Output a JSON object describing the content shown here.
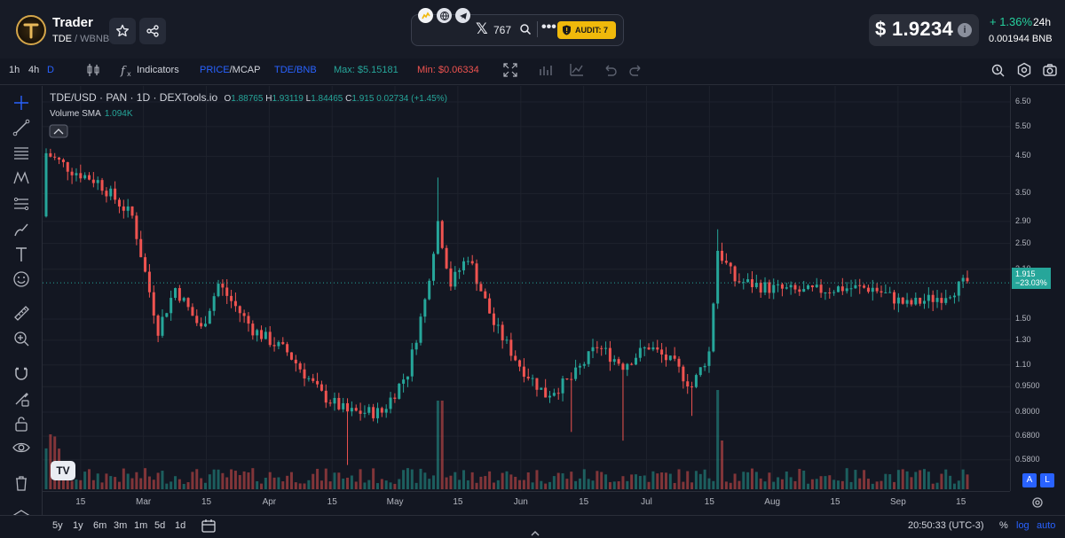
{
  "header": {
    "app_title": "Trader",
    "pair_base": "TDE",
    "pair_sep": " / ",
    "pair_quote": "WBNB",
    "x_followers": "767",
    "audit_label": "AUDIT: 7",
    "price": "$ 1.9234",
    "change": "+ 1.36%",
    "period": "24h",
    "bnb_price": "0.001944  BNB"
  },
  "toolbar": {
    "tf_1h": "1h",
    "tf_4h": "4h",
    "tf_d": "D",
    "indicators": "Indicators",
    "price_label": "PRICE",
    "mcap_label": "/MCAP",
    "tde_bnb": "TDE/BNB",
    "max": "Max: $5.15181",
    "min": "Min: $0.06334"
  },
  "legend": {
    "symbol": "TDE/USD · PAN · 1D · DEXTools.io",
    "o_lbl": "O",
    "o": "1.88765",
    "h_lbl": "H",
    "h": "1.93119",
    "l_lbl": "L",
    "l": "1.84465",
    "c_lbl": "C",
    "c": "1.915",
    "chg": "0.02734 (+1.45%)",
    "volume_label": "Volume SMA",
    "volume_value": "1.094K"
  },
  "price_axis": {
    "ticks": [
      "6.50",
      "5.50",
      "4.50",
      "3.50",
      "2.90",
      "2.50",
      "2.10",
      "1.50",
      "1.30",
      "1.10",
      "0.9500",
      "0.8000",
      "0.6800",
      "0.5800"
    ],
    "current_price": "1.915",
    "current_change": "−23.03%"
  },
  "time_axis": {
    "ticks": [
      "15",
      "Mar",
      "15",
      "Apr",
      "15",
      "May",
      "15",
      "Jun",
      "15",
      "Jul",
      "15",
      "Aug",
      "15",
      "Sep",
      "15"
    ]
  },
  "bottom": {
    "ranges": [
      "5y",
      "1y",
      "6m",
      "3m",
      "1m",
      "5d",
      "1d"
    ],
    "time": "20:50:33 (UTC-3)",
    "pct": "%",
    "log": "log",
    "auto": "auto",
    "scale_a": "A",
    "scale_l": "L",
    "tv": "TV"
  },
  "colors": {
    "up": "#26a69a",
    "down": "#ef5350",
    "accent_blue": "#2962ff",
    "audit": "#f0b90b"
  },
  "chart_data": {
    "type": "candlestick",
    "x_unit": "day",
    "x_start": "Feb 3",
    "x_end": "Sep 17",
    "price_scale": "log",
    "ylim": [
      0.52,
      6.9
    ],
    "ohlc_keyframes": [
      [
        0,
        3.0,
        4.6
      ],
      [
        6,
        4.9,
        4.1
      ],
      [
        12,
        4.0,
        3.8
      ],
      [
        20,
        3.4,
        3.0
      ],
      [
        26,
        2.2,
        1.4
      ],
      [
        30,
        1.95,
        1.85
      ],
      [
        36,
        1.6,
        1.4
      ],
      [
        40,
        1.35,
        1.9
      ],
      [
        48,
        1.45,
        1.4
      ],
      [
        56,
        1.3,
        1.2
      ],
      [
        64,
        1.05,
        0.9
      ],
      [
        70,
        0.72,
        0.8
      ],
      [
        78,
        0.8,
        0.8
      ],
      [
        84,
        0.88,
        1.05
      ],
      [
        88,
        1.25,
        1.7
      ],
      [
        91,
        2.3,
        2.9
      ],
      [
        94,
        2.2,
        1.9
      ],
      [
        98,
        2.6,
        2.3
      ],
      [
        104,
        1.7,
        1.45
      ],
      [
        110,
        1.3,
        1.1
      ],
      [
        116,
        0.95,
        0.9
      ],
      [
        122,
        0.95,
        1.0
      ],
      [
        128,
        1.1,
        1.25
      ],
      [
        134,
        1.15,
        1.1
      ],
      [
        140,
        1.2,
        1.25
      ],
      [
        146,
        1.15,
        1.1
      ],
      [
        150,
        1.05,
        0.95
      ],
      [
        154,
        1.0,
        1.2
      ],
      [
        156,
        1.55,
        2.4
      ],
      [
        160,
        1.9,
        1.95
      ],
      [
        168,
        2.0,
        1.85
      ],
      [
        176,
        1.85,
        1.8
      ],
      [
        184,
        1.9,
        1.85
      ],
      [
        192,
        1.8,
        1.85
      ],
      [
        200,
        1.75,
        1.65
      ],
      [
        208,
        1.7,
        1.75
      ],
      [
        214,
        1.9,
        1.93
      ]
    ]
  }
}
